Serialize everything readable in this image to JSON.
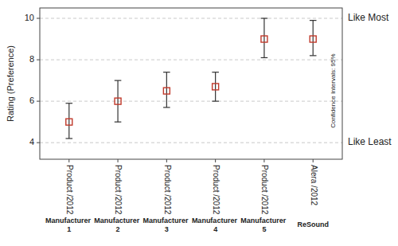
{
  "chart_data": {
    "type": "errorbar",
    "categories": [
      "Product /2012",
      "Product /2012",
      "Product /2012",
      "Product /2012",
      "Product /2012",
      "Alera /2012"
    ],
    "manufacturers": [
      "Manufacturer 1",
      "Manufacturer 2",
      "Manufacturer 3",
      "Manufacturer 4",
      "Manufacturer 5",
      "ReSound"
    ],
    "series": [
      {
        "values": [
          5.0,
          6.0,
          6.5,
          6.7,
          9.0,
          9.0
        ],
        "ci_low": [
          4.2,
          5.0,
          5.7,
          6.0,
          8.1,
          8.2
        ],
        "ci_high": [
          5.9,
          7.0,
          7.4,
          7.4,
          10.0,
          9.9
        ],
        "color": "#c0392b",
        "marker": "square"
      }
    ],
    "ylabel": "Rating (Preference)",
    "ylim": [
      3.2,
      10.5
    ],
    "yticks": [
      4,
      6,
      8,
      10
    ],
    "grid": true,
    "annotations": [
      {
        "text": "Like Most",
        "y": 10.0
      },
      {
        "text": "Like Least",
        "y": 4.0
      }
    ],
    "note": {
      "text": "Confidence Intervals: 95%",
      "y": 6.5
    }
  }
}
